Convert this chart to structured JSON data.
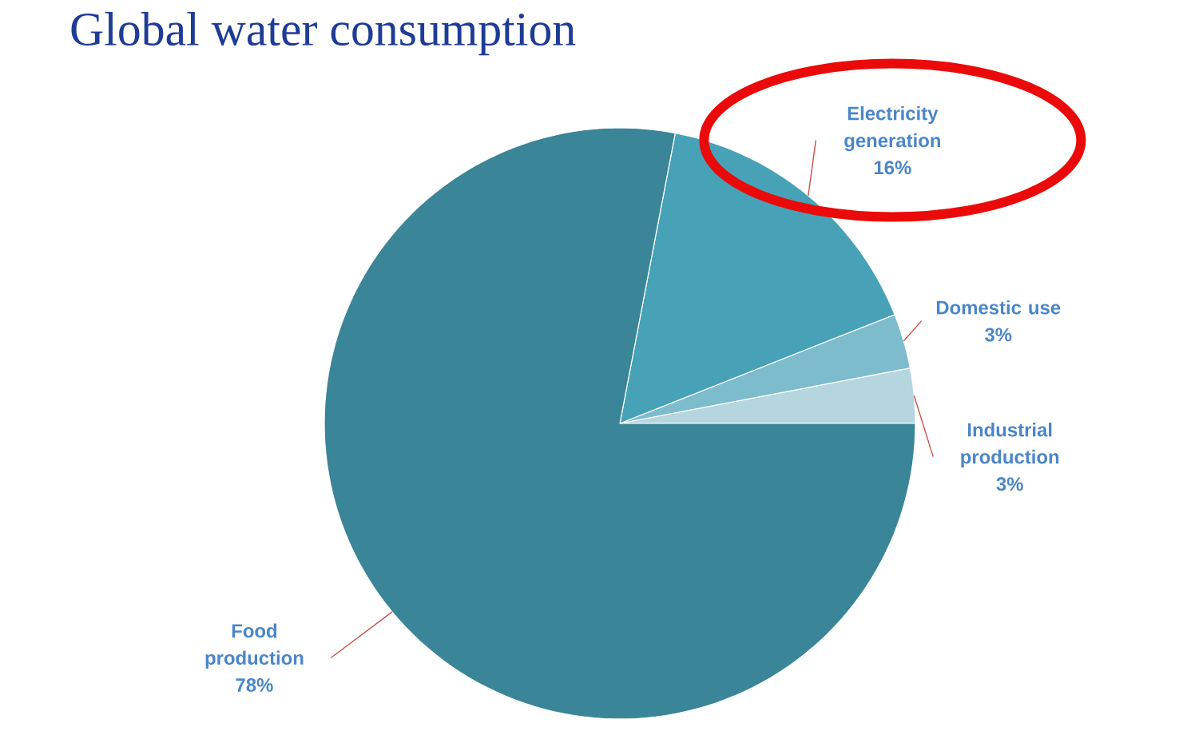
{
  "chart_data": {
    "type": "pie",
    "title": "Global water consumption",
    "categories": [
      "Industrial production",
      "Domestic use",
      "Electricity generation",
      "Food production"
    ],
    "values": [
      3,
      3,
      16,
      78
    ],
    "colors": [
      "#b5d5df",
      "#7dbccd",
      "#47a2b7",
      "#3a8597"
    ],
    "value_labels": [
      "3%",
      "3%",
      "16%",
      "78%"
    ]
  }
}
